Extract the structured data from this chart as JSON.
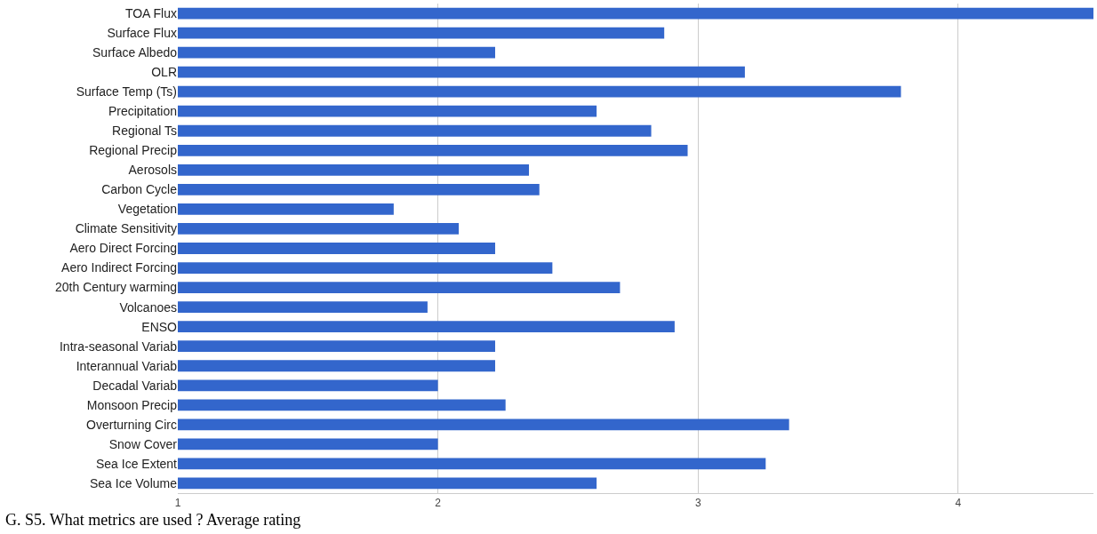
{
  "chart_data": {
    "type": "bar",
    "orientation": "horizontal",
    "annotations": [
      "G. S5. What metrics are used ? Average rating"
    ],
    "categories": [
      "TOA Flux",
      "Surface Flux",
      "Surface Albedo",
      "OLR",
      "Surface Temp (Ts)",
      "Precipitation",
      "Regional Ts",
      "Regional Precip",
      "Aerosols",
      "Carbon Cycle",
      "Vegetation",
      "Climate Sensitivity",
      "Aero Direct Forcing",
      "Aero Indirect Forcing",
      "20th Century warming",
      "Volcanoes",
      "ENSO",
      "Intra-seasonal Variab",
      "Interannual Variab",
      "Decadal Variab",
      "Monsoon Precip",
      "Overturning Circ",
      "Snow Cover",
      "Sea Ice Extent",
      "Sea Ice Volume"
    ],
    "values": [
      4.52,
      2.87,
      2.22,
      3.18,
      3.78,
      2.61,
      2.82,
      2.96,
      2.35,
      2.39,
      1.83,
      2.08,
      2.22,
      2.44,
      2.7,
      1.96,
      2.91,
      2.22,
      2.22,
      2.0,
      2.26,
      3.35,
      2.0,
      3.26,
      2.61
    ],
    "color": "#3366cc",
    "xlim": [
      1,
      4.52
    ],
    "xticks": [
      1,
      2,
      3,
      4
    ],
    "grid": "x",
    "legend": false
  }
}
